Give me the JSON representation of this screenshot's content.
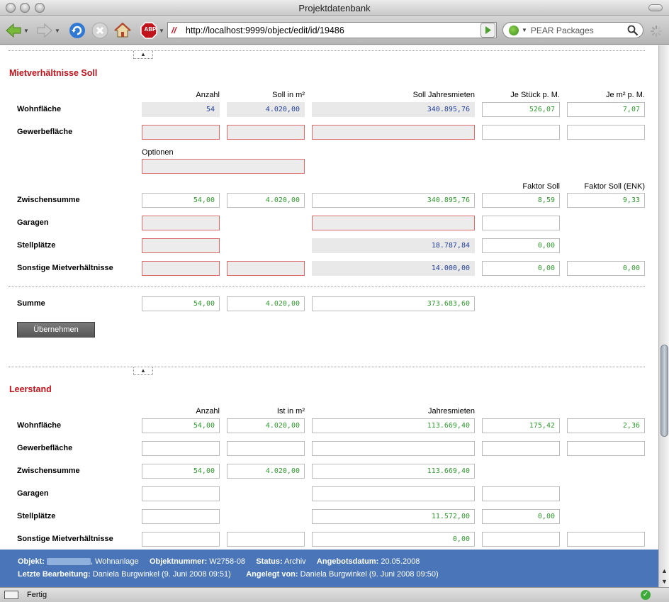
{
  "window": {
    "title": "Projektdatenbank"
  },
  "toolbar": {
    "url": "http://localhost:9999/object/edit/id/19486",
    "search_placeholder": "PEAR Packages",
    "adblock_label": "ABP"
  },
  "soll": {
    "title": "Mietverhältnisse Soll",
    "headers": {
      "anzahl": "Anzahl",
      "flaeche": "Soll in m²",
      "jahresmieten": "Soll Jahresmieten",
      "stueck": "Je Stück p. M.",
      "qm": "Je m² p. M."
    },
    "faktor_headers": {
      "soll": "Faktor Soll",
      "enk": "Faktor Soll (ENK)"
    },
    "options_label": "Optionen",
    "rows": {
      "wohnflaeche": {
        "label": "Wohnfläche",
        "anzahl": "54",
        "flaeche": "4.020,00",
        "jahresmieten": "340.895,76",
        "stueck": "526,07",
        "qm": "7,07"
      },
      "gewerbe": {
        "label": "Gewerbefläche"
      },
      "zwischensumme": {
        "label": "Zwischensumme",
        "anzahl": "54,00",
        "flaeche": "4.020,00",
        "jahresmieten": "340.895,76",
        "faktor": "8,59",
        "faktor_enk": "9,33"
      },
      "garagen": {
        "label": "Garagen"
      },
      "stellplaetze": {
        "label": "Stellplätze",
        "jahresmieten": "18.787,84",
        "c4": "0,00"
      },
      "sonstige": {
        "label": "Sonstige Mietverhältnisse",
        "jahresmieten": "14.000,00",
        "c4": "0,00",
        "c5": "0,00"
      },
      "summe": {
        "label": "Summe",
        "anzahl": "54,00",
        "flaeche": "4.020,00",
        "jahresmieten": "373.683,60"
      }
    },
    "apply_button": "Übernehmen"
  },
  "leerstand": {
    "title": "Leerstand",
    "headers": {
      "anzahl": "Anzahl",
      "flaeche": "Ist in m²",
      "jahresmieten": "Jahresmieten"
    },
    "rows": {
      "wohnflaeche": {
        "label": "Wohnfläche",
        "anzahl": "54,00",
        "flaeche": "4.020,00",
        "jahresmieten": "113.669,40",
        "c4": "175,42",
        "c5": "2,36"
      },
      "gewerbe": {
        "label": "Gewerbefläche"
      },
      "zwischensumme": {
        "label": "Zwischensumme",
        "anzahl": "54,00",
        "flaeche": "4.020,00",
        "jahresmieten": "113.669,40"
      },
      "garagen": {
        "label": "Garagen"
      },
      "stellplaetze": {
        "label": "Stellplätze",
        "jahresmieten": "11.572,00",
        "c4": "0,00"
      },
      "sonstige": {
        "label": "Sonstige Mietverhältnisse",
        "jahresmieten": "0,00"
      }
    }
  },
  "info": {
    "objekt_label": "Objekt:",
    "objekt_value": ", Wohnanlage",
    "nummer_label": "Objektnummer:",
    "nummer_value": "W2758-08",
    "status_label": "Status:",
    "status_value": "Archiv",
    "datum_label": "Angebotsdatum:",
    "datum_value": "20.05.2008",
    "bearb_label": "Letzte Bearbeitung:",
    "bearb_value": "Daniela Burgwinkel (9. Juni 2008 09:51)",
    "angelegt_label": "Angelegt von:",
    "angelegt_value": "Daniela Burgwinkel (9. Juni 2008 09:50)"
  },
  "status": {
    "text": "Fertig"
  }
}
